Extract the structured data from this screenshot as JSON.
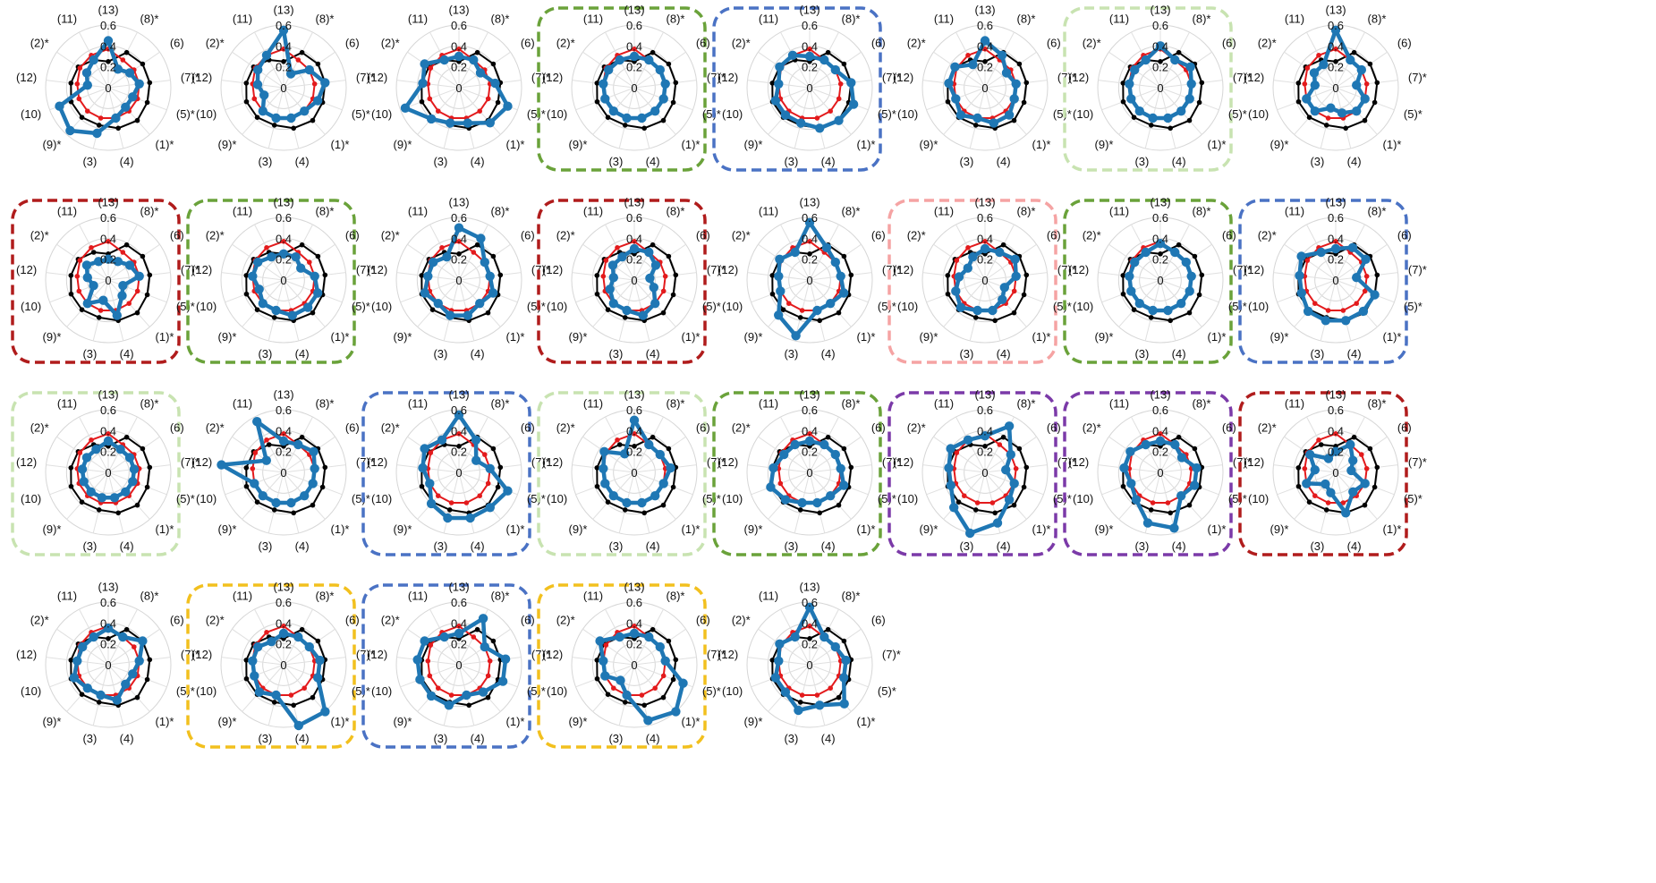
{
  "axis_labels": [
    "(13)",
    "(8)*",
    "(6)",
    "(7)*",
    "(5)*",
    "(1)*",
    "(4)",
    "(3)",
    "(9)*",
    "(10)",
    "(12)",
    "(2)*",
    "(11)"
  ],
  "radial_ticks": [
    "0.6",
    "0.4",
    "0.2",
    "0"
  ],
  "frame_colors": {
    "dark-green": "#6aa23a",
    "light-green": "#c8e3b1",
    "blue": "#4a72c4",
    "dark-red": "#b01c1c",
    "light-red": "#f5a3a3",
    "purple": "#7b3aa8",
    "gold": "#f2c01e"
  },
  "chart_data": {
    "type": "radar",
    "rmax": 0.6,
    "ticks": [
      0,
      0.2,
      0.4,
      0.6
    ],
    "series_colors": {
      "black": "#000000",
      "red": "#e31a1c",
      "blue": "#1f77b4"
    },
    "baseline_black": [
      0.25,
      0.38,
      0.4,
      0.4,
      0.4,
      0.42,
      0.4,
      0.37,
      0.38,
      0.38,
      0.36,
      0.35,
      0.3
    ],
    "baseline_red": [
      0.37,
      0.3,
      0.3,
      0.3,
      0.3,
      0.3,
      0.3,
      0.3,
      0.3,
      0.3,
      0.3,
      0.33,
      0.35
    ],
    "panels": [
      {
        "frame": null,
        "blue": [
          0.45,
          0.2,
          0.25,
          0.3,
          0.25,
          0.25,
          0.3,
          0.45,
          0.55,
          0.5,
          0.2,
          0.25,
          0.3
        ]
      },
      {
        "frame": null,
        "blue": [
          0.55,
          0.15,
          0.3,
          0.4,
          0.35,
          0.3,
          0.3,
          0.3,
          0.3,
          0.2,
          0.25,
          0.3,
          0.35
        ]
      },
      {
        "frame": null,
        "blue": [
          0.3,
          0.3,
          0.25,
          0.35,
          0.5,
          0.45,
          0.35,
          0.35,
          0.4,
          0.55,
          0.35,
          0.4,
          0.3
        ]
      },
      {
        "frame": "dark-green",
        "blue": [
          0.3,
          0.3,
          0.3,
          0.3,
          0.3,
          0.3,
          0.3,
          0.3,
          0.3,
          0.3,
          0.3,
          0.3,
          0.3
        ]
      },
      {
        "frame": "blue",
        "blue": [
          0.3,
          0.3,
          0.3,
          0.4,
          0.45,
          0.42,
          0.4,
          0.35,
          0.35,
          0.35,
          0.3,
          0.35,
          0.35
        ]
      },
      {
        "frame": null,
        "blue": [
          0.45,
          0.35,
          0.25,
          0.3,
          0.3,
          0.35,
          0.35,
          0.3,
          0.35,
          0.3,
          0.35,
          0.35,
          0.25
        ]
      },
      {
        "frame": "light-green",
        "blue": [
          0.4,
          0.3,
          0.35,
          0.3,
          0.3,
          0.3,
          0.3,
          0.3,
          0.3,
          0.3,
          0.3,
          0.3,
          0.3
        ]
      },
      {
        "frame": null,
        "blue": [
          0.55,
          0.3,
          0.3,
          0.2,
          0.3,
          0.3,
          0.25,
          0.2,
          0.3,
          0.3,
          0.2,
          0.25,
          0.25
        ]
      },
      {
        "frame": "dark-red",
        "blue": [
          0.2,
          0.2,
          0.25,
          0.3,
          0.15,
          0.2,
          0.35,
          0.2,
          0.3,
          0.15,
          0.2,
          0.25,
          0.2
        ]
      },
      {
        "frame": "dark-green",
        "blue": [
          0.25,
          0.25,
          0.2,
          0.3,
          0.35,
          0.35,
          0.35,
          0.3,
          0.3,
          0.25,
          0.3,
          0.3,
          0.25
        ]
      },
      {
        "frame": null,
        "blue": [
          0.5,
          0.45,
          0.3,
          0.3,
          0.35,
          0.3,
          0.35,
          0.35,
          0.3,
          0.35,
          0.3,
          0.3,
          0.25
        ]
      },
      {
        "frame": "dark-red",
        "blue": [
          0.3,
          0.3,
          0.25,
          0.15,
          0.2,
          0.3,
          0.35,
          0.3,
          0.3,
          0.25,
          0.2,
          0.25,
          0.25
        ]
      },
      {
        "frame": null,
        "blue": [
          0.55,
          0.35,
          0.3,
          0.3,
          0.35,
          0.3,
          0.3,
          0.55,
          0.45,
          0.3,
          0.3,
          0.35,
          0.3
        ]
      },
      {
        "frame": "light-red",
        "blue": [
          0.3,
          0.3,
          0.35,
          0.3,
          0.2,
          0.25,
          0.3,
          0.3,
          0.35,
          0.3,
          0.25,
          0.2,
          0.25
        ]
      },
      {
        "frame": "dark-green",
        "blue": [
          0.35,
          0.3,
          0.3,
          0.3,
          0.3,
          0.3,
          0.3,
          0.3,
          0.3,
          0.3,
          0.3,
          0.3,
          0.3
        ]
      },
      {
        "frame": "blue",
        "blue": [
          0.3,
          0.35,
          0.35,
          0.2,
          0.4,
          0.4,
          0.4,
          0.4,
          0.4,
          0.35,
          0.35,
          0.4,
          0.3
        ]
      },
      {
        "frame": "light-green",
        "blue": [
          0.3,
          0.25,
          0.25,
          0.25,
          0.25,
          0.25,
          0.25,
          0.25,
          0.25,
          0.25,
          0.25,
          0.25,
          0.25
        ]
      },
      {
        "frame": null,
        "blue": [
          0.3,
          0.3,
          0.35,
          0.3,
          0.3,
          0.3,
          0.3,
          0.3,
          0.3,
          0.3,
          0.6,
          0.2,
          0.55
        ]
      },
      {
        "frame": "blue",
        "blue": [
          0.55,
          0.35,
          0.2,
          0.3,
          0.5,
          0.45,
          0.45,
          0.45,
          0.4,
          0.3,
          0.35,
          0.4,
          0.35
        ]
      },
      {
        "frame": "light-green",
        "blue": [
          0.5,
          0.3,
          0.3,
          0.35,
          0.3,
          0.3,
          0.3,
          0.3,
          0.3,
          0.3,
          0.3,
          0.35,
          0.2
        ]
      },
      {
        "frame": "dark-green",
        "blue": [
          0.3,
          0.3,
          0.3,
          0.3,
          0.35,
          0.3,
          0.3,
          0.3,
          0.35,
          0.4,
          0.35,
          0.3,
          0.3
        ]
      },
      {
        "frame": "purple",
        "blue": [
          0.35,
          0.5,
          0.3,
          0.2,
          0.3,
          0.35,
          0.5,
          0.6,
          0.45,
          0.35,
          0.35,
          0.4,
          0.35
        ]
      },
      {
        "frame": "purple",
        "blue": [
          0.3,
          0.3,
          0.25,
          0.35,
          0.35,
          0.3,
          0.55,
          0.5,
          0.35,
          0.3,
          0.35,
          0.35,
          0.3
        ]
      },
      {
        "frame": "dark-red",
        "blue": [
          0.2,
          0.3,
          0.2,
          0.15,
          0.3,
          0.25,
          0.4,
          0.2,
          0.15,
          0.3,
          0.2,
          0.3,
          0.15
        ]
      },
      {
        "frame": null,
        "blue": [
          0.35,
          0.3,
          0.4,
          0.3,
          0.25,
          0.25,
          0.35,
          0.3,
          0.3,
          0.35,
          0.3,
          0.3,
          0.3
        ]
      },
      {
        "frame": "gold",
        "blue": [
          0.3,
          0.3,
          0.3,
          0.35,
          0.35,
          0.6,
          0.6,
          0.3,
          0.35,
          0.3,
          0.3,
          0.3,
          0.25
        ]
      },
      {
        "frame": "blue",
        "blue": [
          0.3,
          0.5,
          0.3,
          0.45,
          0.45,
          0.35,
          0.3,
          0.4,
          0.4,
          0.4,
          0.4,
          0.4,
          0.3
        ]
      },
      {
        "frame": "gold",
        "blue": [
          0.3,
          0.3,
          0.3,
          0.3,
          0.5,
          0.6,
          0.55,
          0.3,
          0.2,
          0.3,
          0.3,
          0.4,
          0.3
        ]
      },
      {
        "frame": null,
        "blue": [
          0.55,
          0.3,
          0.3,
          0.35,
          0.35,
          0.5,
          0.4,
          0.45,
          0.35,
          0.35,
          0.3,
          0.35,
          0.3
        ]
      }
    ]
  }
}
